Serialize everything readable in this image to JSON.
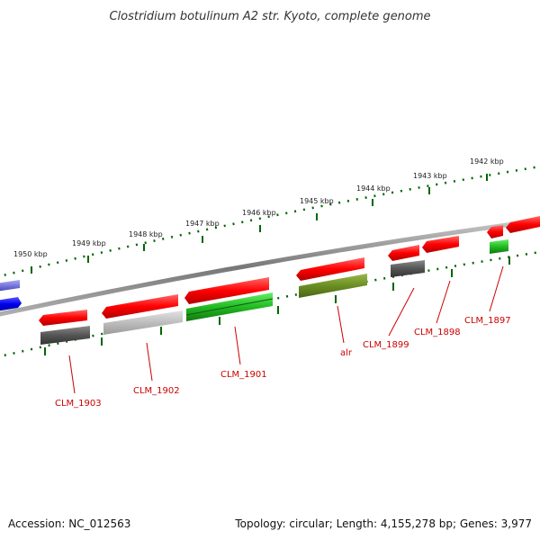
{
  "title": "Clostridium botulinum A2 str. Kyoto, complete genome",
  "footer": {
    "accession": "Accession: NC_012563",
    "topology": "Topology: circular; Length: 4,155,278 bp; Genes: 3,977"
  },
  "ticks": [
    "1950 kbp",
    "1949 kbp",
    "1948 kbp",
    "1947 kbp",
    "1946 kbp",
    "1945 kbp",
    "1944 kbp",
    "1943 kbp",
    "1942 kbp"
  ],
  "gene_labels": [
    "CLM_1903",
    "CLM_1902",
    "CLM_1901",
    "alr",
    "CLM_1899",
    "CLM_1898",
    "CLM_1897"
  ],
  "colors": {
    "cds": "#ff0000",
    "gene_gray": "#555555",
    "gene_lightgray": "#bdbdbd",
    "gene_green": "#22bb22",
    "gene_olive": "#6b8e23",
    "gene_blue": "#0000ee",
    "gene_lightblue": "#7777dd",
    "backbone": "#888888",
    "tick_green": "#006600",
    "label_red": "#cc0000"
  }
}
